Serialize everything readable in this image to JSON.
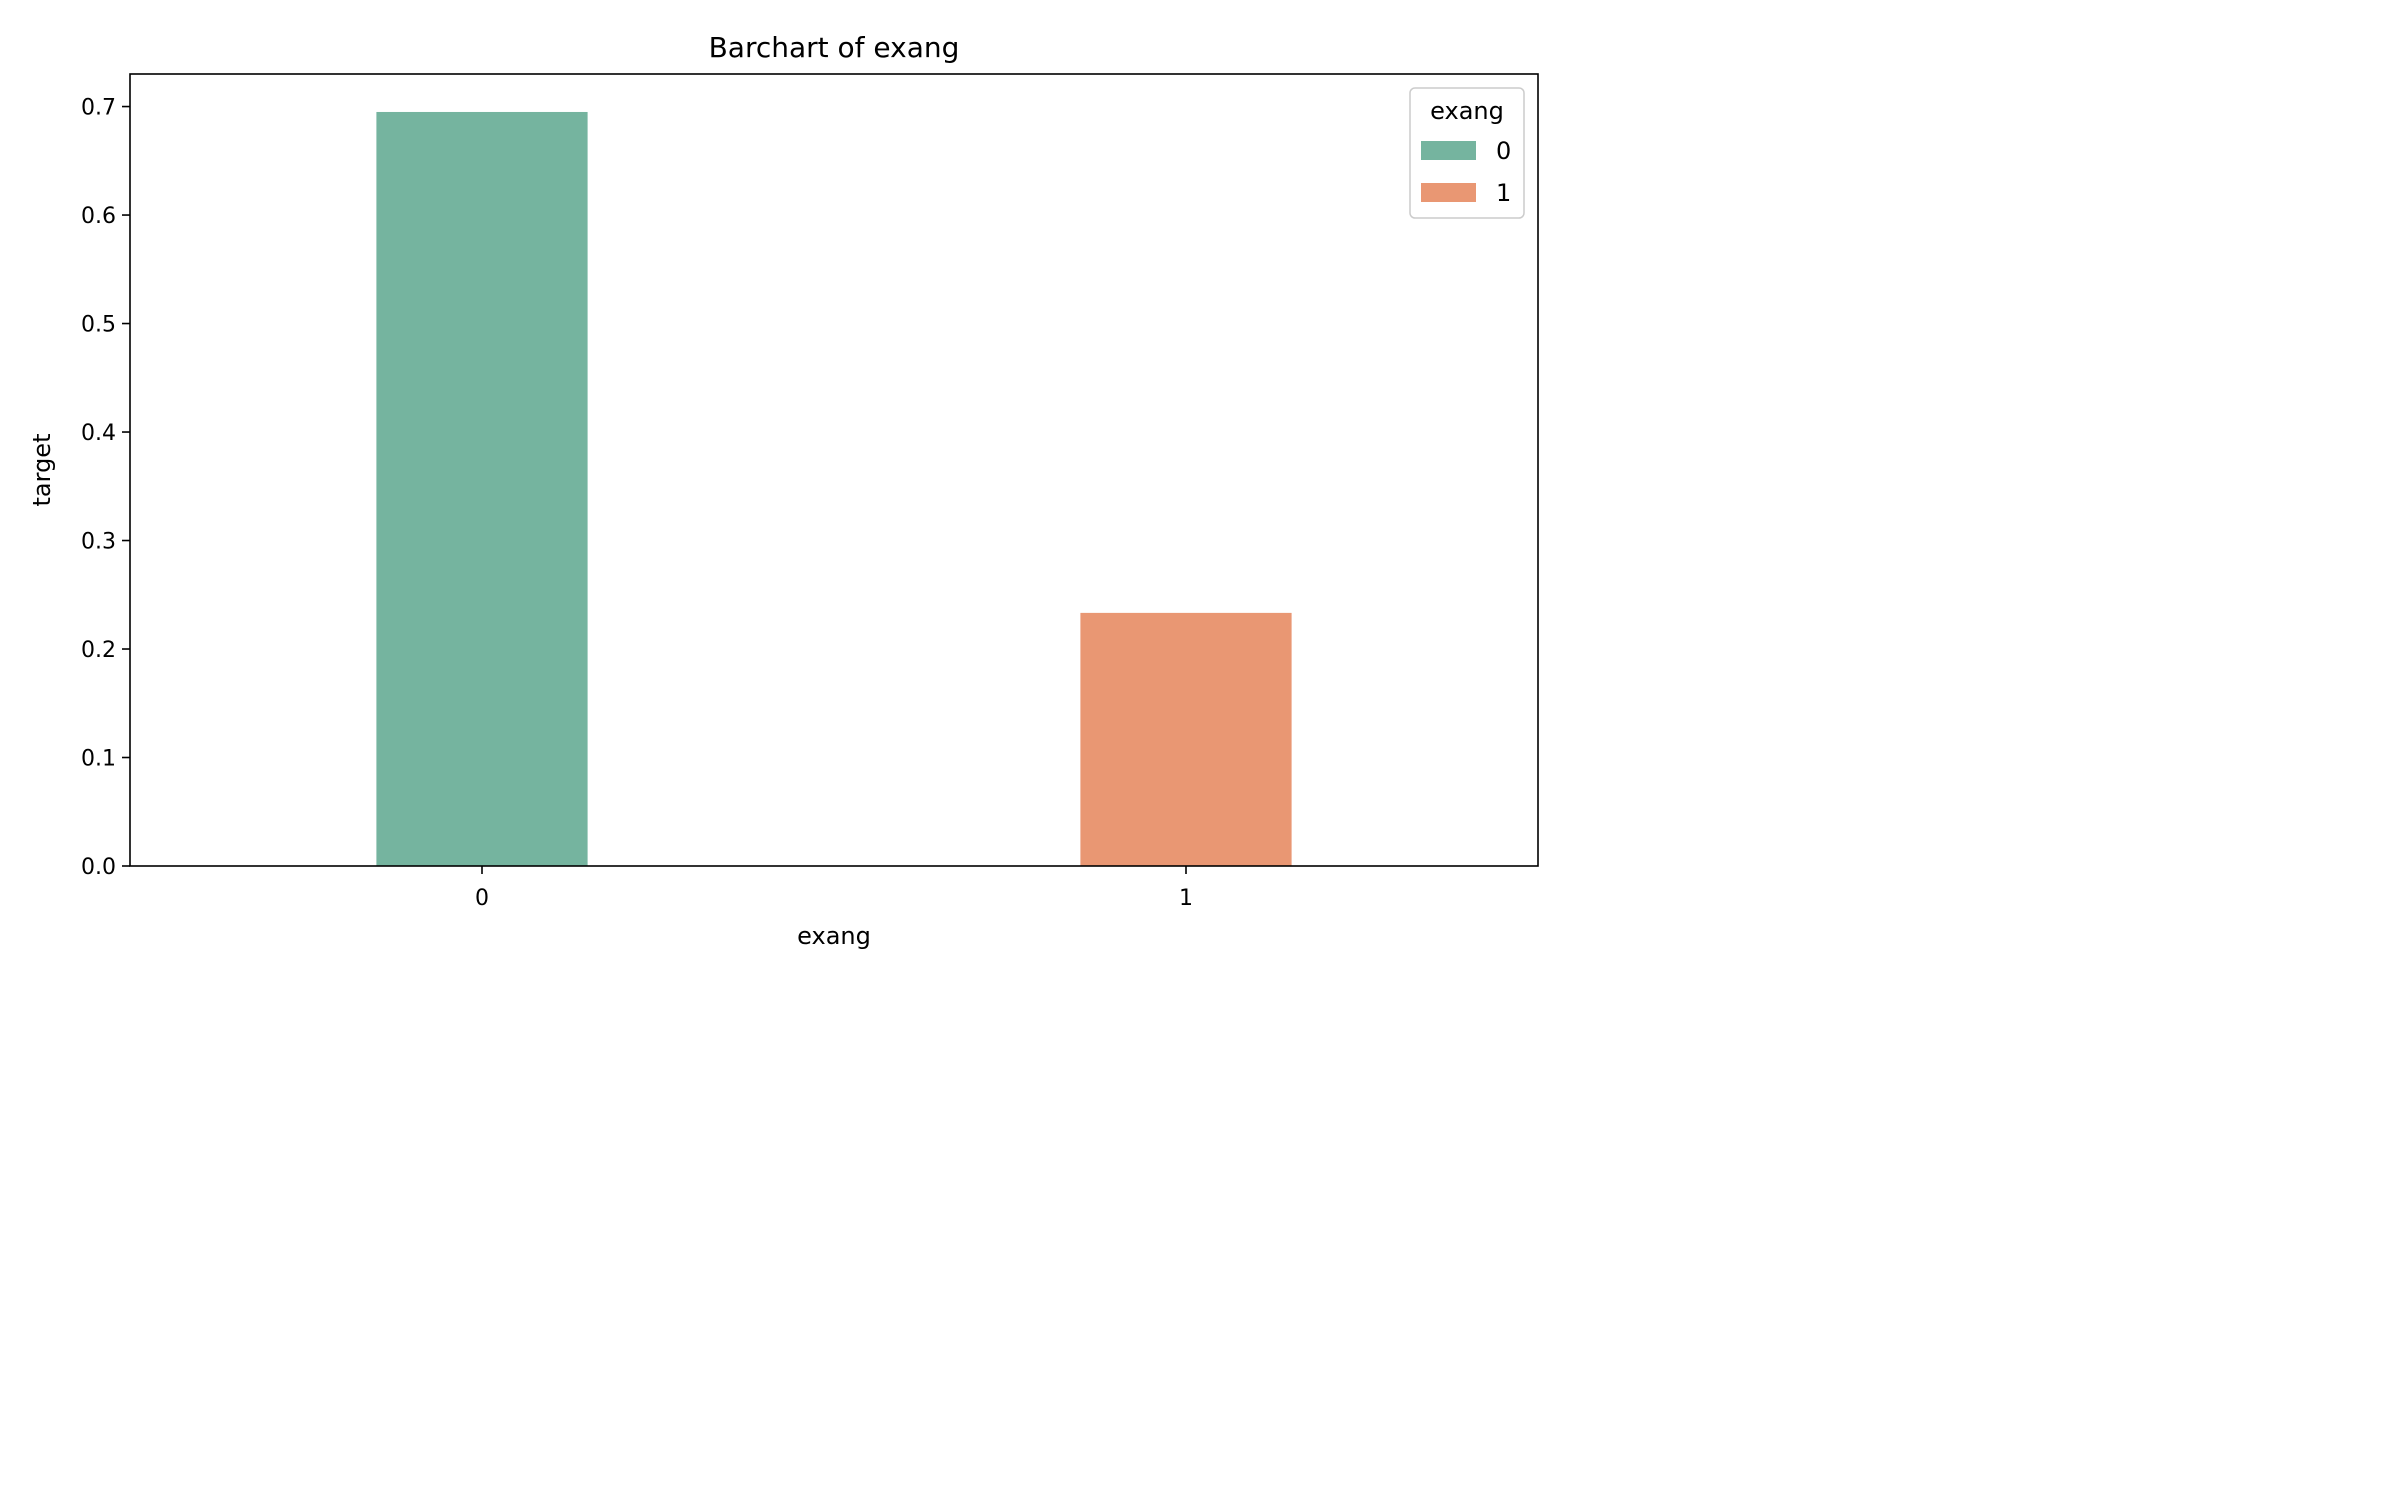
{
  "chart_data": {
    "type": "bar",
    "title": "Barchart of exang",
    "xlabel": "exang",
    "ylabel": "target",
    "categories": [
      "0",
      "1"
    ],
    "values": [
      0.695,
      0.2333
    ],
    "colors": [
      "#75b49f",
      "#e99773"
    ],
    "ylim": [
      0,
      0.73
    ],
    "yticks": [
      0.0,
      0.1,
      0.2,
      0.3,
      0.4,
      0.5,
      0.6,
      0.7
    ],
    "grid": false,
    "legend": {
      "title": "exang",
      "placement": "top-right",
      "entries": [
        "0",
        "1"
      ]
    }
  }
}
